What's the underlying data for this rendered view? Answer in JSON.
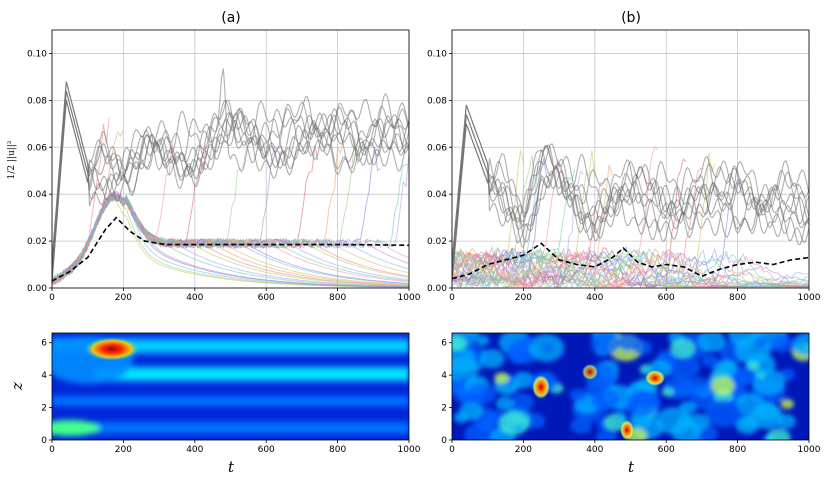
{
  "chart_data": [
    {
      "panel": "a-top",
      "type": "line",
      "title": "(a)",
      "ylabel": "1/2 ||u||²",
      "xlabel": "",
      "xlim": [
        0,
        1000
      ],
      "ylim": [
        0,
        0.11
      ],
      "xticks": [
        "0",
        "200",
        "400",
        "600",
        "800",
        "1000"
      ],
      "yticks": [
        "0.00",
        "0.02",
        "0.04",
        "0.06",
        "0.08",
        "0.10"
      ],
      "grid": true,
      "series": [
        {
          "name": "mean energy (dashed)",
          "x": [
            0,
            50,
            100,
            150,
            180,
            220,
            260,
            320,
            400,
            500,
            600,
            700,
            800,
            900,
            1000
          ],
          "values": [
            0.003,
            0.007,
            0.013,
            0.025,
            0.03,
            0.024,
            0.02,
            0.0185,
            0.0185,
            0.0185,
            0.0185,
            0.0185,
            0.0185,
            0.0184,
            0.0182
          ]
        },
        {
          "name": "transitioned ensemble (grey)",
          "x": [
            0,
            40,
            100,
            200,
            300,
            400,
            500,
            600,
            700,
            800,
            900,
            1000
          ],
          "values": [
            0.003,
            0.08,
            0.045,
            0.055,
            0.055,
            0.06,
            0.065,
            0.063,
            0.065,
            0.064,
            0.065,
            0.066
          ]
        }
      ]
    },
    {
      "panel": "b-top",
      "type": "line",
      "title": "(b)",
      "xlim": [
        0,
        1000
      ],
      "ylim": [
        0,
        0.11
      ],
      "xticks": [
        "0",
        "200",
        "400",
        "600",
        "800",
        "1000"
      ],
      "yticks": [
        "0.00",
        "0.02",
        "0.04",
        "0.06",
        "0.08",
        "0.10"
      ],
      "grid": true,
      "series": [
        {
          "name": "mean energy (dashed)",
          "x": [
            0,
            50,
            100,
            150,
            200,
            250,
            300,
            350,
            400,
            450,
            480,
            520,
            560,
            600,
            650,
            700,
            750,
            800,
            850,
            900,
            950,
            1000
          ],
          "values": [
            0.004,
            0.006,
            0.01,
            0.012,
            0.014,
            0.019,
            0.012,
            0.01,
            0.009,
            0.013,
            0.017,
            0.011,
            0.009,
            0.01,
            0.009,
            0.005,
            0.008,
            0.01,
            0.011,
            0.01,
            0.012,
            0.013
          ]
        },
        {
          "name": "transitioned ensemble (grey)",
          "x": [
            0,
            40,
            100,
            200,
            250,
            300,
            400,
            500,
            600,
            700,
            800,
            900,
            1000
          ],
          "values": [
            0.003,
            0.07,
            0.045,
            0.035,
            0.05,
            0.045,
            0.038,
            0.04,
            0.038,
            0.04,
            0.04,
            0.039,
            0.035
          ]
        }
      ]
    },
    {
      "panel": "a-bottom",
      "type": "heatmap",
      "xlabel": "t",
      "ylabel": "z",
      "xlim": [
        0,
        1000
      ],
      "ylim": [
        0,
        6.6
      ],
      "xticks": [
        "0",
        "200",
        "400",
        "600",
        "800",
        "1000"
      ],
      "yticks": [
        "0",
        "2",
        "4",
        "6"
      ],
      "bands_z": [
        0.8,
        2.0,
        3.6,
        5.3
      ],
      "hotspot": {
        "t": 170,
        "z": 5.4
      }
    },
    {
      "panel": "b-bottom",
      "type": "heatmap",
      "xlabel": "t",
      "xlim": [
        0,
        1000
      ],
      "ylim": [
        0,
        6.6
      ],
      "xticks": [
        "0",
        "200",
        "400",
        "600",
        "800",
        "1000"
      ],
      "yticks": [
        "0",
        "2",
        "4",
        "6"
      ],
      "hotspots": [
        {
          "t": 250,
          "z": 3.2
        },
        {
          "t": 490,
          "z": 0.5
        },
        {
          "t": 570,
          "z": 3.6
        },
        {
          "t": 380,
          "z": 4.2
        }
      ]
    }
  ]
}
